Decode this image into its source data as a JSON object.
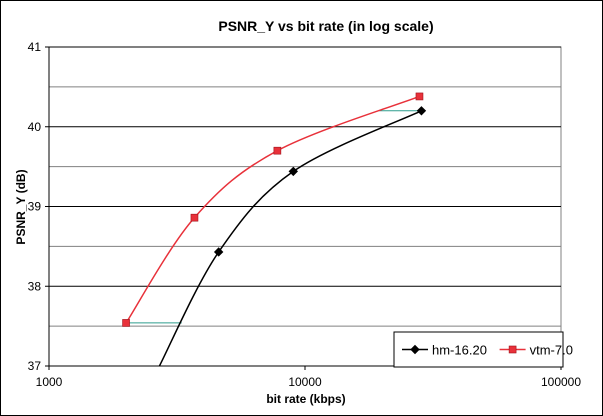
{
  "chart_data": {
    "type": "line",
    "title": "PSNR_Y vs bit rate (in log scale)",
    "xlabel": "bit rate (kbps)",
    "ylabel": "PSNR_Y (dB)",
    "x_scale": "log",
    "xlim": [
      1000,
      100000
    ],
    "ylim": [
      37,
      41
    ],
    "x_ticks": [
      1000,
      10000,
      100000
    ],
    "x_tick_labels": [
      "1000",
      "10000",
      "100000"
    ],
    "y_ticks": [
      37,
      38,
      39,
      40,
      41
    ],
    "y_tick_labels": [
      "37",
      "38",
      "39",
      "40",
      "41"
    ],
    "grid": {
      "major": true,
      "minor": true
    },
    "legend": "bottom-right",
    "series": [
      {
        "name": "hm-16.20",
        "color": "#000000",
        "marker": "diamond",
        "points": [
          [
            2700,
            37.0
          ],
          [
            4600,
            38.43
          ],
          [
            9000,
            39.44
          ],
          [
            28500,
            40.2
          ]
        ]
      },
      {
        "name": "vtm-7.0",
        "color": "#e8313a",
        "marker": "square",
        "points": [
          [
            2000,
            37.54
          ],
          [
            3700,
            38.86
          ],
          [
            7800,
            39.7
          ],
          [
            28000,
            40.38
          ]
        ]
      }
    ],
    "annotations": [
      {
        "type": "segment",
        "color": "#2e9e8e",
        "from": [
          2000,
          37.54
        ],
        "to": [
          3300,
          37.54
        ]
      },
      {
        "type": "segment",
        "color": "#2e9e8e",
        "from": [
          19500,
          40.2
        ],
        "to": [
          28500,
          40.2
        ]
      }
    ]
  }
}
